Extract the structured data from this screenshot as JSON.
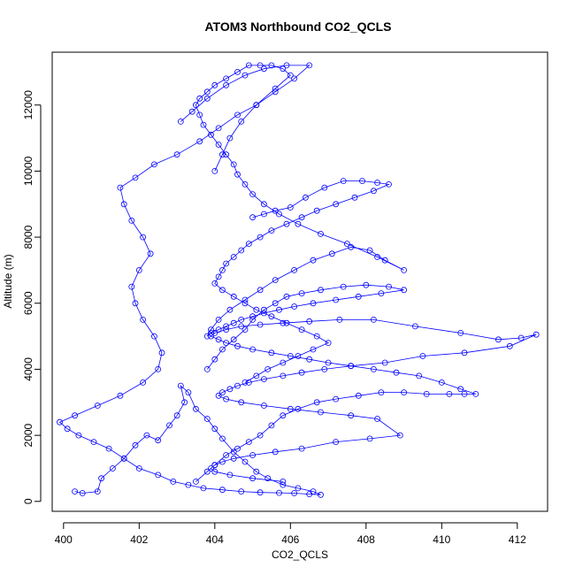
{
  "chart_data": {
    "type": "scatter",
    "title": "ATOM3 Northbound CO2_QCLS",
    "xlabel": "CO2_QCLS",
    "ylabel": "Altitude (m)",
    "xlim": [
      399.7,
      412.8
    ],
    "ylim": [
      -300,
      13600
    ],
    "x_ticks": [
      400,
      402,
      404,
      406,
      408,
      410,
      412
    ],
    "y_ticks": [
      0,
      2000,
      4000,
      6000,
      8000,
      10000,
      12000
    ],
    "grid": false,
    "legend": "none",
    "marker": "open-circle",
    "connect_points": true,
    "series_color": "#0000ff",
    "series": [
      {
        "x": [
          400.3,
          400.5,
          400.9,
          401.0,
          401.3,
          401.6,
          401.9,
          402.2,
          402.5,
          402.8,
          403.0,
          403.2,
          403.1,
          403.3,
          403.5,
          403.8,
          404.0,
          404.2,
          404.5,
          404.8,
          405.1,
          405.4,
          405.8,
          406.2,
          406.6,
          406.8,
          406.5,
          406.1,
          405.7,
          405.2,
          404.7,
          404.2,
          403.7,
          403.3,
          402.9,
          402.5,
          402.0,
          401.6,
          401.2,
          400.8,
          400.4,
          400.1,
          399.9,
          400.3,
          400.9,
          401.5,
          402.1,
          402.5,
          402.6,
          402.4,
          402.1,
          401.9,
          401.8,
          402.0,
          402.3,
          402.1,
          401.8,
          401.6,
          401.5,
          401.9,
          402.4,
          403.0,
          403.6,
          404.1,
          404.6,
          405.1,
          405.6,
          406.1,
          406.5,
          405.9,
          405.3,
          404.8,
          404.3,
          403.8,
          403.4,
          403.1
        ],
        "y": [
          300,
          250,
          300,
          700,
          1000,
          1300,
          1700,
          2000,
          1850,
          2300,
          2600,
          3000,
          3500,
          3300,
          2800,
          2500,
          2200,
          1900,
          1500,
          1200,
          900,
          700,
          500,
          400,
          300,
          200,
          220,
          250,
          260,
          270,
          300,
          350,
          400,
          500,
          600,
          800,
          1000,
          1300,
          1600,
          1800,
          2000,
          2200,
          2400,
          2600,
          2900,
          3200,
          3600,
          4000,
          4500,
          5000,
          5500,
          6000,
          6500,
          7000,
          7500,
          8000,
          8500,
          9000,
          9500,
          9800,
          10200,
          10500,
          10900,
          11300,
          11700,
          12000,
          12400,
          12800,
          13200,
          13200,
          13100,
          12900,
          12600,
          12200,
          11800,
          11500
        ]
      },
      {
        "x": [
          403.5,
          403.8,
          404.0,
          404.3,
          404.6,
          404.9,
          405.2,
          405.5,
          405.8,
          406.2,
          406.7,
          407.2,
          407.8,
          408.4,
          409.0,
          409.6,
          410.2,
          410.6,
          410.9,
          410.5,
          410.0,
          409.4,
          408.8,
          408.2,
          407.6,
          407.0,
          406.5,
          406.0,
          405.5,
          405.0,
          404.6,
          404.3,
          404.1,
          403.9,
          404.0,
          404.3,
          404.7,
          405.2,
          405.8,
          406.5,
          407.3,
          408.2,
          409.3,
          410.5,
          411.5,
          412.1,
          412.5,
          411.8,
          410.6,
          409.5,
          408.5,
          407.6,
          406.9,
          406.3,
          405.8,
          405.3,
          404.9,
          404.6,
          404.4,
          404.2,
          404.1,
          404.3,
          404.7,
          405.3,
          406.0,
          406.8,
          407.6,
          408.3,
          408.9,
          408.1,
          407.2,
          406.3,
          405.6,
          405.0,
          404.5,
          404.2,
          404.0,
          403.9,
          404.0,
          404.4,
          405.0,
          405.8
        ],
        "y": [
          600,
          900,
          1100,
          1400,
          1600,
          1800,
          2000,
          2300,
          2600,
          2800,
          3000,
          3100,
          3200,
          3300,
          3300,
          3250,
          3250,
          3250,
          3250,
          3400,
          3600,
          3800,
          3900,
          4000,
          4100,
          4200,
          4300,
          4400,
          4500,
          4600,
          4700,
          4800,
          4900,
          5000,
          5100,
          5200,
          5300,
          5350,
          5400,
          5450,
          5500,
          5500,
          5300,
          5100,
          4900,
          4950,
          5050,
          4700,
          4500,
          4400,
          4200,
          4100,
          4000,
          3900,
          3800,
          3700,
          3600,
          3500,
          3400,
          3300,
          3200,
          3100,
          3000,
          2900,
          2800,
          2700,
          2600,
          2500,
          2000,
          1900,
          1800,
          1600,
          1500,
          1400,
          1300,
          1200,
          1100,
          1000,
          900,
          800,
          700,
          600
        ]
      },
      {
        "x": [
          403.8,
          404.0,
          404.2,
          404.5,
          404.8,
          405.0,
          405.3,
          405.6,
          405.9,
          406.3,
          406.8,
          407.4,
          408.0,
          408.6,
          409.0,
          408.4,
          407.8,
          407.2,
          406.6,
          406.1,
          405.7,
          405.3,
          405.0,
          404.7,
          404.5,
          404.3,
          404.1,
          403.9,
          403.8,
          403.9,
          404.1,
          404.4,
          404.8,
          405.2,
          405.6,
          406.1,
          406.6,
          407.1,
          407.6,
          408.1,
          408.5,
          409.0,
          408.3,
          407.5,
          406.8,
          406.2,
          405.7,
          405.3,
          405.0,
          404.8,
          404.6,
          404.5,
          404.3,
          404.1,
          403.9,
          403.7,
          403.6,
          403.5,
          403.6,
          403.8,
          404.0,
          404.3,
          404.6,
          404.9,
          405.2,
          405.5,
          405.8,
          406.0,
          405.6,
          405.1,
          404.7,
          404.4,
          404.2,
          404.0
        ],
        "y": [
          4000,
          4300,
          4600,
          4900,
          5200,
          5500,
          5800,
          6000,
          6200,
          6300,
          6400,
          6500,
          6550,
          6500,
          6400,
          6300,
          6200,
          6100,
          6000,
          5900,
          5800,
          5700,
          5600,
          5500,
          5400,
          5300,
          5200,
          5100,
          5000,
          5200,
          5500,
          5800,
          6100,
          6400,
          6700,
          7000,
          7300,
          7500,
          7700,
          7600,
          7300,
          7000,
          7400,
          7800,
          8100,
          8400,
          8700,
          9000,
          9300,
          9600,
          9900,
          10200,
          10500,
          10800,
          11100,
          11400,
          11700,
          12000,
          12200,
          12400,
          12600,
          12800,
          13000,
          13200,
          13200,
          13200,
          13100,
          12900,
          12500,
          12000,
          11500,
          11000,
          10500,
          10000
        ]
      },
      {
        "x": [
          405.0,
          405.3,
          405.6,
          406.0,
          406.4,
          406.9,
          407.4,
          407.9,
          408.3,
          408.6,
          408.2,
          407.7,
          407.2,
          406.7,
          406.3,
          405.9,
          405.5,
          405.2,
          404.9,
          404.7,
          404.5,
          404.3,
          404.2,
          404.1,
          404.0,
          404.2,
          404.5,
          404.8,
          405.1,
          405.5,
          405.9,
          406.3,
          406.7,
          407.0,
          406.6,
          406.2,
          405.8,
          405.4,
          405.1,
          404.8
        ],
        "y": [
          8600,
          8700,
          8800,
          8900,
          9200,
          9500,
          9700,
          9700,
          9650,
          9600,
          9400,
          9200,
          9000,
          8800,
          8600,
          8400,
          8200,
          8000,
          7800,
          7600,
          7400,
          7200,
          7000,
          6800,
          6600,
          6400,
          6200,
          6000,
          5800,
          5600,
          5400,
          5200,
          5000,
          4800,
          4600,
          4400,
          4200,
          4000,
          3800,
          3600
        ]
      }
    ]
  }
}
